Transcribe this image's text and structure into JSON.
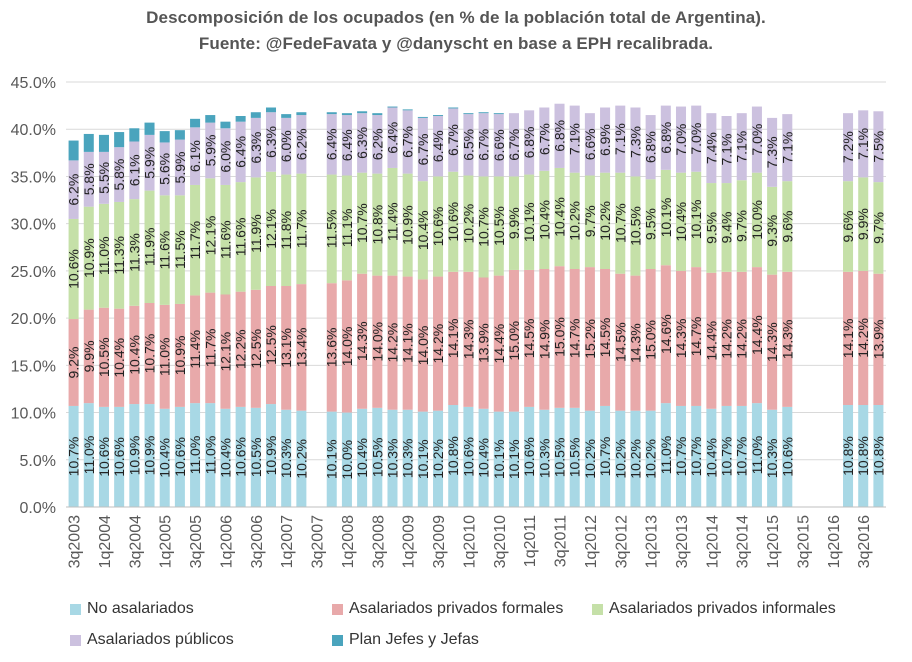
{
  "chart_data": {
    "type": "bar",
    "stacked": true,
    "title": "Descomposición  de los ocupados  (en % de la población  total de Argentina).",
    "subtitle": "Fuente: @FedeFavata y @danyscht  en base  a EPH recalibrada.",
    "ylim": [
      0,
      45
    ],
    "yticks": [
      "0.0%",
      "5.0%",
      "10.0%",
      "15.0%",
      "20.0%",
      "25.0%",
      "30.0%",
      "35.0%",
      "40.0%",
      "45.0%"
    ],
    "xtick_labels": [
      "3q2003",
      "1q2004",
      "3q2004",
      "1q2005",
      "3q2005",
      "1q2006",
      "3q2006",
      "1q2007",
      "3q2007",
      "1q2008",
      "3q2008",
      "1q2009",
      "3q2009",
      "1q2010",
      "3q2010",
      "1q2011",
      "3q2011",
      "1q2012",
      "3q2012",
      "1q2013",
      "3q2013",
      "1q2014",
      "3q2014",
      "1q2015",
      "3q2015",
      "1q2016",
      "3q2016"
    ],
    "categories": [
      "3q2003",
      "4q2003",
      "1q2004",
      "2q2004",
      "3q2004",
      "4q2004",
      "1q2005",
      "2q2005",
      "3q2005",
      "4q2005",
      "1q2006",
      "2q2006",
      "3q2006",
      "4q2006",
      "1q2007",
      "2q2007",
      "3q2007",
      "4q2007",
      "1q2008",
      "2q2008",
      "3q2008",
      "4q2008",
      "1q2009",
      "2q2009",
      "3q2009",
      "4q2009",
      "1q2010",
      "2q2010",
      "3q2010",
      "4q2010",
      "1q2011",
      "2q2011",
      "3q2011",
      "4q2011",
      "1q2012",
      "2q2012",
      "3q2012",
      "4q2012",
      "1q2013",
      "2q2013",
      "3q2013",
      "4q2013",
      "1q2014",
      "2q2014",
      "3q2014",
      "4q2014",
      "1q2015",
      "2q2015",
      "3q2015",
      "4q2015",
      "1q2016",
      "2q2016",
      "3q2016",
      "4q2016"
    ],
    "series": [
      {
        "name": "No asalariados",
        "color": "#a8d8e5",
        "values": [
          10.7,
          11.0,
          10.6,
          10.6,
          10.9,
          10.9,
          10.4,
          10.6,
          11.0,
          11.0,
          10.4,
          10.6,
          10.5,
          10.9,
          10.3,
          10.2,
          null,
          10.1,
          10.0,
          10.4,
          10.5,
          10.3,
          10.3,
          10.1,
          10.2,
          10.8,
          10.6,
          10.4,
          10.1,
          10.1,
          10.6,
          10.3,
          10.5,
          10.5,
          10.2,
          10.7,
          10.2,
          10.2,
          10.2,
          11.0,
          10.7,
          10.7,
          10.4,
          10.7,
          10.7,
          11.0,
          10.3,
          10.6,
          null,
          null,
          null,
          10.8,
          10.8,
          10.8
        ],
        "labels": [
          "10.7%",
          "11.0%",
          "10.6%",
          "10.6%",
          "10.9%",
          "10.9%",
          "10.4%",
          "10.6%",
          "11.0%",
          "11.0%",
          "10.4%",
          "10.6%",
          "10.5%",
          "10.9%",
          "10.3%",
          "10.2%",
          "",
          "10.1%",
          "10.0%",
          "10.4%",
          "10.5%",
          "10.3%",
          "10.3%",
          "10.1%",
          "10.2%",
          "10.8%",
          "10.6%",
          "10.4%",
          "10.1%",
          "10.1%",
          "10.6%",
          "10.3%",
          "10.5%",
          "10.5%",
          "10.2%",
          "10.7%",
          "10.2%",
          "10.2%",
          "10.2%",
          "11.0%",
          "10.7%",
          "10.7%",
          "10.4%",
          "10.7%",
          "10.7%",
          "11.0%",
          "10.3%",
          "10.6%",
          "",
          "",
          "",
          "10.8%",
          "10.8%",
          "10.8%"
        ]
      },
      {
        "name": "Asalariados privados formales",
        "color": "#e8a9aa",
        "values": [
          9.2,
          9.9,
          10.5,
          10.4,
          10.4,
          10.7,
          11.0,
          10.9,
          11.4,
          11.7,
          12.1,
          12.2,
          12.5,
          12.5,
          13.1,
          13.4,
          null,
          13.6,
          14.0,
          14.3,
          14.0,
          14.2,
          14.1,
          14.0,
          14.2,
          14.1,
          14.3,
          13.9,
          14.4,
          15.0,
          14.5,
          14.9,
          15.0,
          14.7,
          15.2,
          14.5,
          14.5,
          14.3,
          15.0,
          14.6,
          14.3,
          14.7,
          14.4,
          14.2,
          14.2,
          14.4,
          14.3,
          14.3,
          null,
          null,
          null,
          14.1,
          14.2,
          13.9
        ],
        "labels": [
          "9.2%",
          "9.9%",
          "10.5%",
          "10.4%",
          "10.4%",
          "10.7%",
          "11.0%",
          "10.9%",
          "11.4%",
          "11.7%",
          "12.1%",
          "12.2%",
          "12.5%",
          "12.5%",
          "13.1%",
          "13.4%",
          "",
          "13.6%",
          "14.0%",
          "14.3%",
          "14.0%",
          "14.2%",
          "14.1%",
          "14.0%",
          "14.2%",
          "14.1%",
          "14.3%",
          "13.9%",
          "14.4%",
          "15.0%",
          "14.5%",
          "14.9%",
          "15.0%",
          "14.7%",
          "15.2%",
          "14.5%",
          "14.5%",
          "14.3%",
          "15.0%",
          "14.6%",
          "14.3%",
          "14.7%",
          "14.4%",
          "14.2%",
          "14.2%",
          "14.4%",
          "14.3%",
          "14.3%",
          "",
          "",
          "",
          "14.1%",
          "14.2%",
          "13.9%"
        ]
      },
      {
        "name": "Asalariados privados informales",
        "color": "#c5e0a8",
        "values": [
          10.6,
          10.9,
          11.0,
          11.3,
          11.3,
          11.9,
          11.6,
          11.5,
          11.7,
          12.1,
          11.6,
          11.6,
          11.9,
          12.1,
          11.8,
          11.7,
          null,
          11.5,
          11.1,
          10.7,
          10.8,
          11.4,
          10.9,
          10.4,
          10.6,
          10.6,
          10.2,
          10.7,
          10.5,
          9.9,
          10.1,
          10.4,
          10.4,
          10.2,
          9.7,
          10.2,
          10.7,
          10.5,
          9.5,
          10.1,
          10.4,
          10.1,
          9.5,
          9.4,
          9.7,
          10.0,
          9.3,
          9.6,
          null,
          null,
          null,
          9.6,
          9.9,
          9.7
        ],
        "labels": [
          "10.6%",
          "10.9%",
          "11.0%",
          "11.3%",
          "11.3%",
          "11.9%",
          "11.6%",
          "11.5%",
          "11.7%",
          "12.1%",
          "11.6%",
          "11.6%",
          "11.9%",
          "12.1%",
          "11.8%",
          "11.7%",
          "",
          "11.5%",
          "11.1%",
          "10.7%",
          "10.8%",
          "11.4%",
          "10.9%",
          "10.4%",
          "10.6%",
          "10.6%",
          "10.2%",
          "10.7%",
          "10.5%",
          "9.9%",
          "10.1%",
          "10.4%",
          "10.4%",
          "10.2%",
          "9.7%",
          "10.2%",
          "10.7%",
          "10.5%",
          "9.5%",
          "10.1%",
          "10.4%",
          "10.1%",
          "9.5%",
          "9.4%",
          "9.7%",
          "10.0%",
          "9.3%",
          "9.6%",
          "",
          "",
          "",
          "9.6%",
          "9.9%",
          "9.7%"
        ]
      },
      {
        "name": "Asalariados públicos",
        "color": "#ccc1df",
        "values": [
          6.2,
          5.8,
          5.5,
          5.8,
          6.1,
          5.9,
          5.6,
          5.9,
          6.1,
          5.9,
          6.0,
          6.4,
          6.3,
          6.3,
          6.0,
          6.2,
          null,
          6.4,
          6.4,
          6.3,
          6.2,
          6.4,
          6.7,
          6.7,
          6.4,
          6.7,
          6.5,
          6.7,
          6.6,
          6.7,
          6.8,
          6.7,
          6.8,
          7.1,
          6.6,
          6.9,
          7.1,
          7.3,
          6.8,
          6.8,
          7.0,
          7.0,
          7.4,
          7.1,
          7.1,
          7.0,
          7.3,
          7.1,
          null,
          null,
          null,
          7.2,
          7.1,
          7.5
        ],
        "labels": [
          "6.2%",
          "5.8%",
          "5.5%",
          "5.8%",
          "6.1%",
          "5.9%",
          "5.6%",
          "5.9%",
          "6.1%",
          "5.9%",
          "6.0%",
          "6.4%",
          "6.3%",
          "6.3%",
          "6.0%",
          "6.2%",
          "",
          "6.4%",
          "6.4%",
          "6.3%",
          "6.2%",
          "6.4%",
          "6.7%",
          "6.7%",
          "6.4%",
          "6.7%",
          "6.5%",
          "6.7%",
          "6.6%",
          "6.7%",
          "6.8%",
          "6.7%",
          "6.8%",
          "7.1%",
          "6.6%",
          "6.9%",
          "7.1%",
          "7.3%",
          "6.8%",
          "6.8%",
          "7.0%",
          "7.0%",
          "7.4%",
          "7.1%",
          "7.1%",
          "7.0%",
          "7.3%",
          "7.1%",
          "",
          "",
          "",
          "7.2%",
          "7.1%",
          "7.5%"
        ]
      },
      {
        "name": "Plan Jefes y Jefas",
        "color": "#4aa4bd",
        "values": [
          2.1,
          1.9,
          1.8,
          1.6,
          1.4,
          1.3,
          1.2,
          1.0,
          0.9,
          0.8,
          0.7,
          0.6,
          0.6,
          0.5,
          0.4,
          0.3,
          null,
          0.2,
          0.2,
          0.2,
          0.2,
          0.1,
          0.1,
          0.1,
          0.1,
          0.1,
          0.1,
          0.1,
          0.1,
          0.0,
          0.0,
          0.0,
          0.0,
          0.0,
          0.0,
          0.0,
          0.0,
          0.0,
          0.0,
          0.0,
          0.0,
          0.0,
          0.0,
          0.0,
          0.0,
          0.0,
          0.0,
          0.0,
          null,
          null,
          null,
          0.0,
          0.0,
          0.0
        ]
      }
    ],
    "legend": "bottom"
  }
}
